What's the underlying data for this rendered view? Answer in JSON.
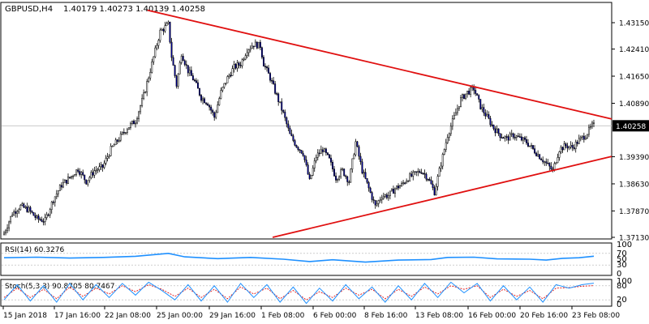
{
  "header": {
    "symbol": "GBPUSD,H4",
    "ohlc": "1.40179 1.40273 1.40139 1.40258"
  },
  "colors": {
    "bull": "#ffffff",
    "bear": "#0000a0",
    "wick": "#000000",
    "trend": "#e01010",
    "rsi": "#1e90ff",
    "stoch_main": "#1e90ff",
    "stoch_signal": "#e01010",
    "price_tag_bg": "#000000",
    "price_tag_text": "#ffffff"
  },
  "chart_data": [
    {
      "type": "candlestick",
      "title": "GBPUSD,H4",
      "ylim": [
        1.3713,
        1.4315
      ],
      "y_ticks": [
        "1.43150",
        "1.42410",
        "1.41650",
        "1.40890",
        "1.40258",
        "1.39390",
        "1.38630",
        "1.37870",
        "1.37130"
      ],
      "current_price": 1.40258,
      "current_price_label": "1.40258",
      "x_ticks": [
        "15 Jan 2018",
        "17 Jan 16:00",
        "22 Jan 08:00",
        "25 Jan 00:00",
        "29 Jan 16:00",
        "1 Feb 08:00",
        "6 Feb 00:00",
        "8 Feb 16:00",
        "13 Feb 08:00",
        "16 Feb 00:00",
        "20 Feb 16:00",
        "23 Feb 08:00"
      ],
      "close_path": [
        [
          0,
          1.3725
        ],
        [
          5,
          1.378
        ],
        [
          10,
          1.38
        ],
        [
          15,
          1.379
        ],
        [
          20,
          1.3765
        ],
        [
          25,
          1.376
        ],
        [
          30,
          1.382
        ],
        [
          35,
          1.386
        ],
        [
          40,
          1.388
        ],
        [
          45,
          1.3905
        ],
        [
          50,
          1.387
        ],
        [
          55,
          1.39
        ],
        [
          60,
          1.391
        ],
        [
          65,
          1.396
        ],
        [
          70,
          1.399
        ],
        [
          75,
          1.402
        ],
        [
          80,
          1.404
        ],
        [
          85,
          1.411
        ],
        [
          90,
          1.42
        ],
        [
          95,
          1.429
        ],
        [
          100,
          1.431
        ],
        [
          102,
          1.422
        ],
        [
          105,
          1.414
        ],
        [
          108,
          1.423
        ],
        [
          112,
          1.418
        ],
        [
          116,
          1.415
        ],
        [
          120,
          1.4105
        ],
        [
          124,
          1.409
        ],
        [
          128,
          1.405
        ],
        [
          132,
          1.412
        ],
        [
          136,
          1.416
        ],
        [
          140,
          1.419
        ],
        [
          144,
          1.42
        ],
        [
          148,
          1.424
        ],
        [
          152,
          1.4255
        ],
        [
          156,
          1.425
        ],
        [
          158,
          1.42
        ],
        [
          162,
          1.416
        ],
        [
          166,
          1.411
        ],
        [
          170,
          1.406
        ],
        [
          174,
          1.4
        ],
        [
          178,
          1.397
        ],
        [
          182,
          1.395
        ],
        [
          186,
          1.387
        ],
        [
          190,
          1.394
        ],
        [
          194,
          1.396
        ],
        [
          198,
          1.393
        ],
        [
          202,
          1.388
        ],
        [
          206,
          1.39
        ],
        [
          210,
          1.387
        ],
        [
          214,
          1.398
        ],
        [
          218,
          1.39
        ],
        [
          222,
          1.385
        ],
        [
          226,
          1.38
        ],
        [
          230,
          1.383
        ],
        [
          234,
          1.383
        ],
        [
          238,
          1.385
        ],
        [
          242,
          1.386
        ],
        [
          246,
          1.388
        ],
        [
          250,
          1.389
        ],
        [
          254,
          1.39
        ],
        [
          258,
          1.388
        ],
        [
          262,
          1.384
        ],
        [
          266,
          1.392
        ],
        [
          270,
          1.4
        ],
        [
          274,
          1.405
        ],
        [
          278,
          1.41
        ],
        [
          282,
          1.412
        ],
        [
          286,
          1.413
        ],
        [
          290,
          1.408
        ],
        [
          294,
          1.405
        ],
        [
          298,
          1.402
        ],
        [
          302,
          1.4
        ],
        [
          306,
          1.399
        ],
        [
          310,
          1.4
        ],
        [
          314,
          1.399
        ],
        [
          318,
          1.398
        ],
        [
          322,
          1.396
        ],
        [
          326,
          1.394
        ],
        [
          330,
          1.392
        ],
        [
          334,
          1.39
        ],
        [
          338,
          1.396
        ],
        [
          342,
          1.397
        ],
        [
          346,
          1.3965
        ],
        [
          350,
          1.3985
        ],
        [
          354,
          1.4
        ],
        [
          358,
          1.4026
        ]
      ],
      "trendlines": [
        {
          "name": "resistance",
          "from": [
            0.24,
            1.435
          ],
          "to": [
            1.0,
            1.4045
          ]
        },
        {
          "name": "support",
          "from": [
            0.445,
            1.3713
          ],
          "to": [
            1.0,
            1.394
          ]
        }
      ],
      "n_bars": 360
    },
    {
      "type": "line",
      "title": "RSI(14) 60.3276",
      "ylim": [
        0,
        100
      ],
      "y_ticks": [
        "100",
        "70",
        "50",
        "30",
        "0"
      ],
      "levels": [
        70,
        30
      ],
      "series": [
        {
          "name": "RSI(14)",
          "path": [
            [
              0,
              55
            ],
            [
              20,
              57
            ],
            [
              40,
              54
            ],
            [
              60,
              56
            ],
            [
              80,
              60
            ],
            [
              100,
              70
            ],
            [
              110,
              58
            ],
            [
              130,
              52
            ],
            [
              150,
              56
            ],
            [
              170,
              50
            ],
            [
              186,
              42
            ],
            [
              200,
              48
            ],
            [
              220,
              40
            ],
            [
              240,
              47
            ],
            [
              260,
              49
            ],
            [
              270,
              56
            ],
            [
              286,
              57
            ],
            [
              300,
              51
            ],
            [
              320,
              50
            ],
            [
              330,
              47
            ],
            [
              340,
              53
            ],
            [
              350,
              55
            ],
            [
              359,
              60.3
            ]
          ]
        }
      ]
    },
    {
      "type": "line",
      "title": "Stoch(5,3,3) 90.8705 80.7467",
      "ylim": [
        0,
        100
      ],
      "y_ticks": [
        "100",
        "80",
        "20",
        "0"
      ],
      "levels": [
        80,
        20
      ],
      "series": [
        {
          "name": "Stoch %K",
          "path": [
            [
              0,
              20
            ],
            [
              8,
              85
            ],
            [
              16,
              15
            ],
            [
              24,
              80
            ],
            [
              32,
              10
            ],
            [
              40,
              90
            ],
            [
              48,
              20
            ],
            [
              56,
              85
            ],
            [
              64,
              30
            ],
            [
              72,
              90
            ],
            [
              80,
              40
            ],
            [
              88,
              95
            ],
            [
              96,
              60
            ],
            [
              104,
              20
            ],
            [
              112,
              85
            ],
            [
              120,
              15
            ],
            [
              128,
              80
            ],
            [
              136,
              10
            ],
            [
              144,
              90
            ],
            [
              152,
              30
            ],
            [
              160,
              85
            ],
            [
              168,
              10
            ],
            [
              176,
              75
            ],
            [
              184,
              5
            ],
            [
              192,
              70
            ],
            [
              200,
              15
            ],
            [
              208,
              85
            ],
            [
              216,
              25
            ],
            [
              224,
              75
            ],
            [
              232,
              10
            ],
            [
              240,
              80
            ],
            [
              248,
              20
            ],
            [
              256,
              90
            ],
            [
              264,
              30
            ],
            [
              272,
              95
            ],
            [
              280,
              50
            ],
            [
              288,
              90
            ],
            [
              296,
              15
            ],
            [
              304,
              80
            ],
            [
              312,
              20
            ],
            [
              320,
              75
            ],
            [
              328,
              10
            ],
            [
              336,
              85
            ],
            [
              344,
              70
            ],
            [
              352,
              85
            ],
            [
              359,
              90.9
            ]
          ]
        },
        {
          "name": "Stoch %D",
          "path": [
            [
              0,
              30
            ],
            [
              8,
              70
            ],
            [
              16,
              30
            ],
            [
              24,
              65
            ],
            [
              32,
              25
            ],
            [
              40,
              75
            ],
            [
              48,
              35
            ],
            [
              56,
              70
            ],
            [
              64,
              45
            ],
            [
              72,
              80
            ],
            [
              80,
              55
            ],
            [
              88,
              85
            ],
            [
              96,
              65
            ],
            [
              104,
              35
            ],
            [
              112,
              70
            ],
            [
              120,
              30
            ],
            [
              128,
              65
            ],
            [
              136,
              25
            ],
            [
              144,
              75
            ],
            [
              152,
              45
            ],
            [
              160,
              70
            ],
            [
              168,
              25
            ],
            [
              176,
              60
            ],
            [
              184,
              20
            ],
            [
              192,
              55
            ],
            [
              200,
              30
            ],
            [
              208,
              70
            ],
            [
              216,
              40
            ],
            [
              224,
              65
            ],
            [
              232,
              25
            ],
            [
              240,
              65
            ],
            [
              248,
              35
            ],
            [
              256,
              75
            ],
            [
              264,
              45
            ],
            [
              272,
              80
            ],
            [
              280,
              65
            ],
            [
              288,
              80
            ],
            [
              296,
              30
            ],
            [
              304,
              65
            ],
            [
              312,
              35
            ],
            [
              320,
              60
            ],
            [
              328,
              25
            ],
            [
              336,
              70
            ],
            [
              344,
              72
            ],
            [
              352,
              78
            ],
            [
              359,
              80.7
            ]
          ]
        }
      ]
    }
  ],
  "indicators": {
    "rsi_label": "RSI(14) 60.3276",
    "stoch_label": "Stoch(5,3,3) 90.8705 80.7467"
  }
}
